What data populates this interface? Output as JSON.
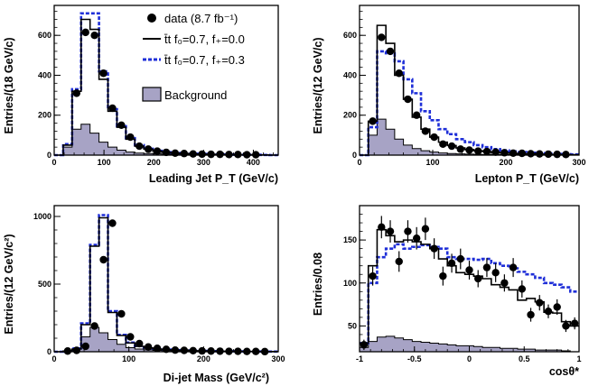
{
  "legend": {
    "data": "data (8.7 fb⁻¹)",
    "model0": "t̄t f₀=0.7, f₊=0.0",
    "model3": "t̄t f₀=0.7, f₊=0.3",
    "background": "Background"
  },
  "colors": {
    "axis": "#000000",
    "model0_line": "#000000",
    "model3_line": "#1f2fd8",
    "background_fill": "#a7a3c5",
    "data_marker": "#000000"
  },
  "chart_data": [
    {
      "type": "histogram",
      "ylabel": "Entries/(18 GeV/c)",
      "xlabel": "Leading Jet P_T (GeV/c)",
      "xlim": [
        0,
        450
      ],
      "ylim": [
        0,
        750
      ],
      "xticks": [
        0,
        100,
        200,
        300,
        400
      ],
      "yticks": [
        0,
        200,
        400,
        600
      ],
      "bins": [
        0,
        18,
        36,
        54,
        72,
        90,
        108,
        126,
        144,
        162,
        180,
        198,
        216,
        234,
        252,
        270,
        288,
        306,
        324,
        342,
        360,
        378,
        396,
        414,
        432,
        450
      ],
      "data_x": [
        45,
        63,
        81,
        99,
        117,
        135,
        153,
        171,
        189,
        207,
        225,
        243,
        261,
        279,
        297,
        315,
        333,
        351,
        369,
        387,
        405
      ],
      "data_y": [
        310,
        615,
        600,
        410,
        235,
        150,
        90,
        45,
        30,
        20,
        14,
        10,
        8,
        6,
        5,
        4,
        4,
        3,
        3,
        2,
        2
      ],
      "model0": [
        0,
        50,
        320,
        680,
        630,
        380,
        220,
        140,
        80,
        45,
        30,
        20,
        14,
        10,
        8,
        6,
        5,
        4,
        3,
        3,
        2,
        2,
        1,
        1,
        0
      ],
      "model3": [
        0,
        55,
        330,
        710,
        710,
        420,
        230,
        145,
        85,
        50,
        32,
        22,
        15,
        11,
        9,
        7,
        6,
        5,
        4,
        3,
        2,
        2,
        2,
        1,
        0
      ],
      "background": [
        0,
        40,
        130,
        155,
        110,
        65,
        40,
        25,
        15,
        10,
        8,
        6,
        5,
        4,
        3,
        3,
        2,
        2,
        2,
        1,
        1,
        1,
        1,
        0,
        0
      ]
    },
    {
      "type": "histogram",
      "ylabel": "Entries/(12 GeV/c)",
      "xlabel": "Lepton P_T (GeV/c)",
      "xlim": [
        0,
        300
      ],
      "ylim": [
        0,
        750
      ],
      "xticks": [
        0,
        100,
        200,
        300
      ],
      "yticks": [
        0,
        200,
        400,
        600
      ],
      "bins": [
        0,
        12,
        24,
        36,
        48,
        60,
        72,
        84,
        96,
        108,
        120,
        132,
        144,
        156,
        168,
        180,
        192,
        204,
        216,
        228,
        240,
        252,
        264,
        276,
        288,
        300
      ],
      "data_x": [
        18,
        30,
        42,
        54,
        66,
        78,
        90,
        102,
        114,
        126,
        138,
        150,
        162,
        174,
        186,
        198,
        210,
        222,
        234,
        246,
        258,
        270,
        282
      ],
      "data_y": [
        170,
        590,
        520,
        410,
        280,
        200,
        120,
        90,
        55,
        45,
        30,
        25,
        20,
        18,
        15,
        12,
        10,
        9,
        7,
        6,
        5,
        4,
        3
      ],
      "model0": [
        0,
        170,
        650,
        560,
        400,
        280,
        190,
        130,
        90,
        65,
        48,
        36,
        28,
        22,
        18,
        14,
        11,
        9,
        7,
        6,
        5,
        4,
        3,
        3,
        2
      ],
      "model3": [
        0,
        140,
        520,
        510,
        470,
        380,
        310,
        220,
        175,
        130,
        105,
        80,
        65,
        50,
        40,
        30,
        24,
        19,
        15,
        12,
        10,
        8,
        6,
        5,
        4
      ],
      "background": [
        0,
        100,
        180,
        130,
        80,
        50,
        33,
        22,
        15,
        11,
        8,
        6,
        5,
        4,
        3,
        3,
        2,
        2,
        2,
        1,
        1,
        1,
        1,
        1,
        0
      ]
    },
    {
      "type": "histogram",
      "ylabel": "Entries/(12 GeV/c²)",
      "xlabel": "Di-jet Mass (GeV/c²)",
      "xlim": [
        0,
        300
      ],
      "ylim": [
        0,
        1080
      ],
      "xticks": [
        0,
        100,
        200,
        300
      ],
      "yticks": [
        0,
        500,
        1000
      ],
      "bins": [
        0,
        12,
        24,
        36,
        48,
        60,
        72,
        84,
        96,
        108,
        120,
        132,
        144,
        156,
        168,
        180,
        192,
        204,
        216,
        228,
        240,
        252,
        264,
        276,
        288,
        300
      ],
      "data_x": [
        18,
        30,
        42,
        54,
        66,
        78,
        90,
        102,
        114,
        126,
        138,
        150,
        162,
        174,
        186,
        198,
        210,
        222,
        234,
        246,
        258,
        270,
        282
      ],
      "data_y": [
        5,
        10,
        40,
        190,
        680,
        950,
        280,
        110,
        60,
        35,
        25,
        18,
        12,
        10,
        8,
        6,
        5,
        4,
        3,
        3,
        2,
        2,
        1
      ],
      "model0": [
        0,
        5,
        20,
        200,
        780,
        990,
        290,
        120,
        65,
        40,
        28,
        20,
        15,
        11,
        9,
        7,
        6,
        5,
        4,
        3,
        3,
        2,
        2,
        1,
        1
      ],
      "model3": [
        0,
        5,
        25,
        210,
        790,
        1010,
        300,
        125,
        68,
        42,
        30,
        22,
        16,
        12,
        10,
        8,
        6,
        5,
        4,
        4,
        3,
        2,
        2,
        1,
        1
      ],
      "background": [
        0,
        5,
        20,
        110,
        180,
        140,
        90,
        55,
        30,
        20,
        14,
        10,
        8,
        6,
        5,
        4,
        3,
        3,
        2,
        2,
        1,
        1,
        1,
        1,
        0
      ]
    },
    {
      "type": "histogram",
      "ylabel": "Entries/0.08",
      "xlabel": "cosθ*",
      "xlim": [
        -1,
        1
      ],
      "ylim": [
        20,
        190
      ],
      "xticks": [
        -1,
        -0.5,
        0,
        0.5,
        1
      ],
      "yticks": [
        50,
        100,
        150
      ],
      "bins": [
        -1,
        -0.92,
        -0.84,
        -0.76,
        -0.68,
        -0.6,
        -0.52,
        -0.44,
        -0.36,
        -0.28,
        -0.2,
        -0.12,
        -0.04,
        0.04,
        0.12,
        0.2,
        0.28,
        0.36,
        0.44,
        0.52,
        0.6,
        0.68,
        0.76,
        0.84,
        0.92,
        1
      ],
      "data_x": [
        -0.96,
        -0.88,
        -0.8,
        -0.72,
        -0.64,
        -0.56,
        -0.48,
        -0.4,
        -0.32,
        -0.24,
        -0.16,
        -0.08,
        0,
        0.08,
        0.16,
        0.24,
        0.32,
        0.4,
        0.48,
        0.56,
        0.64,
        0.72,
        0.8,
        0.88,
        0.96
      ],
      "data_y": [
        28,
        108,
        165,
        160,
        125,
        160,
        152,
        163,
        140,
        108,
        123,
        128,
        115,
        105,
        118,
        112,
        100,
        118,
        93,
        63,
        77,
        67,
        72,
        50,
        53
      ],
      "data_err": [
        6,
        11,
        13,
        13,
        12,
        13,
        13,
        13,
        12,
        11,
        11,
        12,
        11,
        10,
        11,
        11,
        10,
        11,
        10,
        8,
        9,
        8,
        9,
        7,
        7
      ],
      "model0": [
        30,
        120,
        162,
        155,
        148,
        150,
        148,
        145,
        140,
        128,
        120,
        112,
        110,
        108,
        105,
        98,
        95,
        92,
        80,
        82,
        78,
        66,
        65,
        55,
        50
      ],
      "model3": [
        30,
        100,
        130,
        140,
        145,
        140,
        142,
        144,
        142,
        140,
        130,
        128,
        128,
        127,
        128,
        123,
        120,
        117,
        113,
        110,
        106,
        100,
        98,
        95,
        90
      ],
      "background": [
        25,
        32,
        37,
        38,
        36,
        34,
        32,
        31,
        30,
        29,
        28,
        27,
        27,
        26,
        25,
        25,
        24,
        24,
        23,
        23,
        22,
        22,
        22,
        21,
        20
      ]
    }
  ]
}
